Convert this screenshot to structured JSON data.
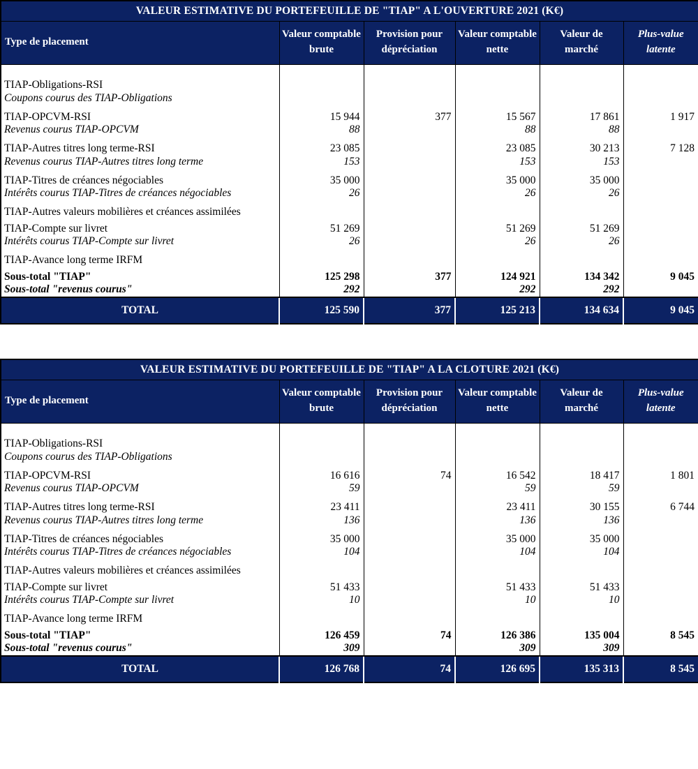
{
  "report": {
    "colors": {
      "header_navy": "#0c2263",
      "header_text": "#ffffff",
      "body_text": "#000000"
    },
    "columns": [
      "Type de placement",
      "Valeur comptable brute",
      "Provision pour dépréciation",
      "Valeur comptable nette",
      "Valeur de marché",
      "Plus-value latente"
    ],
    "tables": [
      {
        "id": "opening",
        "title": "VALEUR ESTIMATIVE DU PORTEFEUILLE DE \"TIAP\" A L'OUVERTURE 2021 (K€)",
        "rows": [
          {
            "s": "main",
            "g": true,
            "label": "TIAP-Obligations-RSI",
            "v": [
              "",
              "",
              "",
              "",
              ""
            ]
          },
          {
            "s": "sub",
            "g": false,
            "label": "Coupons courus des TIAP-Obligations",
            "v": [
              "",
              "",
              "",
              "",
              ""
            ]
          },
          {
            "s": "main",
            "g": true,
            "label": "TIAP-OPCVM-RSI",
            "v": [
              "15 944",
              "377",
              "15 567",
              "17 861",
              "1 917"
            ]
          },
          {
            "s": "sub",
            "g": false,
            "label": "Revenus courus TIAP-OPCVM",
            "v": [
              "88",
              "",
              "88",
              "88",
              ""
            ]
          },
          {
            "s": "main",
            "g": true,
            "label": "TIAP-Autres titres long terme-RSI",
            "v": [
              "23 085",
              "",
              "23 085",
              "30 213",
              "7 128"
            ]
          },
          {
            "s": "sub",
            "g": false,
            "label": "Revenus courus TIAP-Autres titres long terme",
            "v": [
              "153",
              "",
              "153",
              "153",
              ""
            ]
          },
          {
            "s": "main",
            "g": true,
            "label": "TIAP-Titres de créances négociables",
            "v": [
              "35 000",
              "",
              "35 000",
              "35 000",
              ""
            ]
          },
          {
            "s": "sub",
            "g": false,
            "label": "Intérêts courus TIAP-Titres de créances négociables",
            "v": [
              "26",
              "",
              "26",
              "26",
              ""
            ]
          },
          {
            "s": "main",
            "g": true,
            "label": "TIAP-Autres valeurs mobilières et créances assimilées",
            "v": [
              "",
              "",
              "",
              "",
              ""
            ]
          },
          {
            "s": "main",
            "g": true,
            "label": "TIAP-Compte sur livret",
            "v": [
              "51 269",
              "",
              "51 269",
              "51 269",
              ""
            ]
          },
          {
            "s": "sub",
            "g": false,
            "label": "Intérêts courus TIAP-Compte sur livret",
            "v": [
              "26",
              "",
              "26",
              "26",
              ""
            ]
          },
          {
            "s": "main",
            "g": true,
            "label": "TIAP-Avance long terme IRFM",
            "v": [
              "",
              "",
              "",
              "",
              ""
            ]
          },
          {
            "s": "subtotal",
            "g": true,
            "label": "Sous-total \"TIAP\"",
            "v": [
              "125 298",
              "377",
              "124 921",
              "134 342",
              "9 045"
            ]
          },
          {
            "s": "subtotal-sub",
            "g": false,
            "label": "Sous-total \"revenus courus\"",
            "v": [
              "292",
              "",
              "292",
              "292",
              ""
            ]
          }
        ],
        "total": {
          "label": "TOTAL",
          "v": [
            "125 590",
            "377",
            "125 213",
            "134 634",
            "9 045"
          ]
        }
      },
      {
        "id": "closing",
        "title": "VALEUR ESTIMATIVE DU PORTEFEUILLE DE \"TIAP\" A LA CLOTURE 2021 (K€)",
        "rows": [
          {
            "s": "main",
            "g": true,
            "label": "TIAP-Obligations-RSI",
            "v": [
              "",
              "",
              "",
              "",
              ""
            ]
          },
          {
            "s": "sub",
            "g": false,
            "label": "Coupons courus des TIAP-Obligations",
            "v": [
              "",
              "",
              "",
              "",
              ""
            ]
          },
          {
            "s": "main",
            "g": true,
            "label": "TIAP-OPCVM-RSI",
            "v": [
              "16 616",
              "74",
              "16 542",
              "18 417",
              "1 801"
            ]
          },
          {
            "s": "sub",
            "g": false,
            "label": "Revenus courus TIAP-OPCVM",
            "v": [
              "59",
              "",
              "59",
              "59",
              ""
            ]
          },
          {
            "s": "main",
            "g": true,
            "label": "TIAP-Autres titres long terme-RSI",
            "v": [
              "23 411",
              "",
              "23 411",
              "30 155",
              "6 744"
            ]
          },
          {
            "s": "sub",
            "g": false,
            "label": "Revenus courus TIAP-Autres titres long terme",
            "v": [
              "136",
              "",
              "136",
              "136",
              ""
            ]
          },
          {
            "s": "main",
            "g": true,
            "label": "TIAP-Titres de créances négociables",
            "v": [
              "35 000",
              "",
              "35 000",
              "35 000",
              ""
            ]
          },
          {
            "s": "sub",
            "g": false,
            "label": "Intérêts courus TIAP-Titres de créances négociables",
            "v": [
              "104",
              "",
              "104",
              "104",
              ""
            ]
          },
          {
            "s": "main",
            "g": true,
            "label": "TIAP-Autres valeurs mobilières et créances assimilées",
            "v": [
              "",
              "",
              "",
              "",
              ""
            ]
          },
          {
            "s": "main",
            "g": true,
            "label": "TIAP-Compte sur livret",
            "v": [
              "51 433",
              "",
              "51 433",
              "51 433",
              ""
            ]
          },
          {
            "s": "sub",
            "g": false,
            "label": "Intérêts courus TIAP-Compte sur livret",
            "v": [
              "10",
              "",
              "10",
              "10",
              ""
            ]
          },
          {
            "s": "main",
            "g": true,
            "label": "TIAP-Avance long terme IRFM",
            "v": [
              "",
              "",
              "",
              "",
              ""
            ]
          },
          {
            "s": "subtotal",
            "g": true,
            "label": "Sous-total \"TIAP\"",
            "v": [
              "126 459",
              "74",
              "126 386",
              "135 004",
              "8 545"
            ]
          },
          {
            "s": "subtotal-sub",
            "g": false,
            "label": "Sous-total \"revenus courus\"",
            "v": [
              "309",
              "",
              "309",
              "309",
              ""
            ]
          }
        ],
        "total": {
          "label": "TOTAL",
          "v": [
            "126 768",
            "74",
            "126 695",
            "135 313",
            "8 545"
          ]
        }
      }
    ]
  }
}
